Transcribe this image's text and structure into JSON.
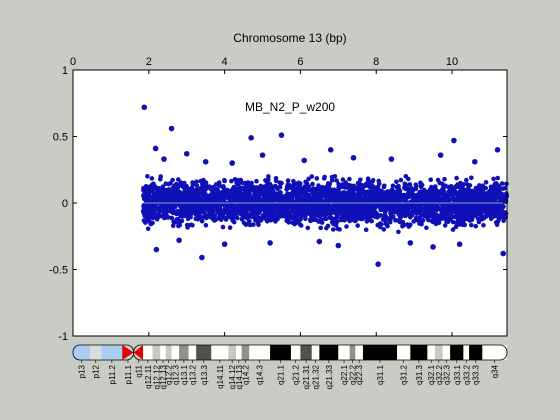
{
  "chart_data": {
    "type": "scatter",
    "title": "Chromosome 13 (bp)",
    "annotation": "MB_N2_P_w200",
    "xlabel": "",
    "ylabel": "",
    "x_axis_position": "top",
    "xlim": [
      0,
      11.45
    ],
    "ylim": [
      -1,
      1
    ],
    "x_ticks": [
      0,
      2,
      4,
      6,
      8,
      10
    ],
    "x_tick_labels": [
      "0",
      "2",
      "4",
      "6",
      "8",
      "10"
    ],
    "y_ticks": [
      1,
      0.5,
      0,
      -0.5,
      -1
    ],
    "y_tick_labels": [
      "1",
      "0.5",
      "0",
      "-0.5",
      "-1"
    ],
    "grid": false,
    "legend": "none",
    "colors": {
      "points": "#1010b8",
      "baseline": "#7ea6c8",
      "background": "#ffffff",
      "figure": "#c8ccc4",
      "centromere": "#e00000"
    },
    "data_range_x": [
      1.85,
      11.45
    ],
    "dense_band_y": [
      -0.22,
      0.22
    ],
    "outlier_points": [
      {
        "x": 1.88,
        "y": 0.72
      },
      {
        "x": 2.6,
        "y": 0.56
      },
      {
        "x": 5.5,
        "y": 0.51
      },
      {
        "x": 4.7,
        "y": 0.49
      },
      {
        "x": 10.05,
        "y": 0.47
      },
      {
        "x": 2.18,
        "y": 0.41
      },
      {
        "x": 6.8,
        "y": 0.4
      },
      {
        "x": 11.2,
        "y": 0.4
      },
      {
        "x": 3.0,
        "y": 0.37
      },
      {
        "x": 5.0,
        "y": 0.36
      },
      {
        "x": 7.4,
        "y": 0.34
      },
      {
        "x": 9.7,
        "y": 0.36
      },
      {
        "x": 2.4,
        "y": 0.33
      },
      {
        "x": 8.4,
        "y": 0.33
      },
      {
        "x": 3.5,
        "y": 0.31
      },
      {
        "x": 6.1,
        "y": 0.32
      },
      {
        "x": 10.6,
        "y": 0.31
      },
      {
        "x": 4.2,
        "y": 0.3
      },
      {
        "x": 8.05,
        "y": -0.46
      },
      {
        "x": 3.4,
        "y": -0.41
      },
      {
        "x": 11.35,
        "y": -0.38
      },
      {
        "x": 2.2,
        "y": -0.35
      },
      {
        "x": 9.5,
        "y": -0.33
      },
      {
        "x": 7.0,
        "y": -0.32
      },
      {
        "x": 4.0,
        "y": -0.31
      },
      {
        "x": 5.2,
        "y": -0.3
      },
      {
        "x": 6.5,
        "y": -0.29
      },
      {
        "x": 8.9,
        "y": -0.3
      },
      {
        "x": 10.2,
        "y": -0.31
      },
      {
        "x": 2.8,
        "y": -0.28
      }
    ],
    "ideogram": {
      "bands": [
        {
          "label": "p13",
          "start": 0.0,
          "end": 0.45,
          "stain": "acen_light"
        },
        {
          "label": "p12",
          "start": 0.45,
          "end": 0.75,
          "stain": "gvar"
        },
        {
          "label": "p11.2",
          "start": 0.75,
          "end": 1.3,
          "stain": "acen_light"
        },
        {
          "label": "p11.1",
          "start": 1.3,
          "end": 1.6,
          "stain": "acen"
        },
        {
          "label": "q11",
          "start": 1.6,
          "end": 1.85,
          "stain": "acen"
        },
        {
          "label": "q12.11",
          "start": 1.85,
          "end": 2.1,
          "stain": "gneg"
        },
        {
          "label": "q12.12",
          "start": 2.1,
          "end": 2.3,
          "stain": "gpos25"
        },
        {
          "label": "q12.13",
          "start": 2.3,
          "end": 2.45,
          "stain": "gneg"
        },
        {
          "label": "q12.2",
          "start": 2.45,
          "end": 2.6,
          "stain": "gpos25"
        },
        {
          "label": "q12.3",
          "start": 2.6,
          "end": 2.8,
          "stain": "gneg"
        },
        {
          "label": "q13.1",
          "start": 2.8,
          "end": 3.05,
          "stain": "gpos50"
        },
        {
          "label": "q13.2",
          "start": 3.05,
          "end": 3.25,
          "stain": "gneg"
        },
        {
          "label": "q13.3",
          "start": 3.25,
          "end": 3.65,
          "stain": "gpos75"
        },
        {
          "label": "q14.11",
          "start": 3.65,
          "end": 4.1,
          "stain": "gneg"
        },
        {
          "label": "q14.12",
          "start": 4.1,
          "end": 4.3,
          "stain": "gpos25"
        },
        {
          "label": "q14.13",
          "start": 4.3,
          "end": 4.45,
          "stain": "gneg"
        },
        {
          "label": "q14.2",
          "start": 4.45,
          "end": 4.65,
          "stain": "gpos50"
        },
        {
          "label": "q14.3",
          "start": 4.65,
          "end": 5.2,
          "stain": "gneg"
        },
        {
          "label": "q21.1",
          "start": 5.2,
          "end": 5.75,
          "stain": "gpos100"
        },
        {
          "label": "q21.2",
          "start": 5.75,
          "end": 6.0,
          "stain": "gneg"
        },
        {
          "label": "q21.31",
          "start": 6.0,
          "end": 6.3,
          "stain": "gpos75"
        },
        {
          "label": "q21.32",
          "start": 6.3,
          "end": 6.5,
          "stain": "gneg"
        },
        {
          "label": "q21.33",
          "start": 6.5,
          "end": 7.0,
          "stain": "gpos100"
        },
        {
          "label": "q22.1",
          "start": 7.0,
          "end": 7.3,
          "stain": "gneg"
        },
        {
          "label": "q22.2",
          "start": 7.3,
          "end": 7.45,
          "stain": "gpos50"
        },
        {
          "label": "q22.3",
          "start": 7.45,
          "end": 7.65,
          "stain": "gneg"
        },
        {
          "label": "q31.1",
          "start": 7.65,
          "end": 8.55,
          "stain": "gpos100"
        },
        {
          "label": "q31.2",
          "start": 8.55,
          "end": 8.9,
          "stain": "gneg"
        },
        {
          "label": "q31.3",
          "start": 8.9,
          "end": 9.35,
          "stain": "gpos100"
        },
        {
          "label": "q32.1",
          "start": 9.35,
          "end": 9.55,
          "stain": "gneg"
        },
        {
          "label": "q32.2",
          "start": 9.55,
          "end": 9.75,
          "stain": "gpos25"
        },
        {
          "label": "q32.3",
          "start": 9.75,
          "end": 9.95,
          "stain": "gneg"
        },
        {
          "label": "q33.1",
          "start": 9.95,
          "end": 10.3,
          "stain": "gpos100"
        },
        {
          "label": "q33.2",
          "start": 10.3,
          "end": 10.45,
          "stain": "gneg"
        },
        {
          "label": "q33.3",
          "start": 10.45,
          "end": 10.8,
          "stain": "gpos100"
        },
        {
          "label": "q34",
          "start": 10.8,
          "end": 11.45,
          "stain": "gneg"
        }
      ]
    }
  }
}
